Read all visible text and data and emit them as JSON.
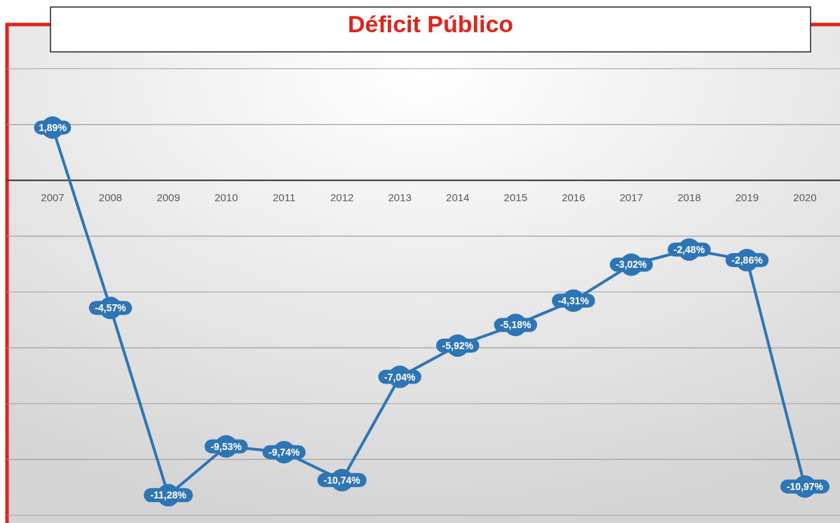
{
  "chart_data": {
    "type": "line",
    "title": "Déficit Público",
    "categories": [
      "2007",
      "2008",
      "2009",
      "2010",
      "2011",
      "2012",
      "2013",
      "2014",
      "2015",
      "2016",
      "2017",
      "2018",
      "2019",
      "2020"
    ],
    "series": [
      {
        "color": "#2e75b6",
        "values": [
          1.89,
          -4.57,
          -11.28,
          -9.53,
          -9.74,
          -10.74,
          -7.04,
          -5.92,
          -5.18,
          -4.31,
          -3.02,
          -2.48,
          -2.86,
          -10.97
        ],
        "value_labels": [
          "1,89%",
          "-4,57%",
          "-11,28%",
          "-9,53%",
          "-9,74%",
          "-10,74%",
          "-7,04%",
          "-5,92%",
          "-5,18%",
          "-4,31%",
          "-3,02%",
          "-2,48%",
          "-2,86%",
          "-10,97%"
        ]
      }
    ],
    "ylim": [
      -12,
      4
    ],
    "yticks": [
      {
        "value": -12,
        "label": null
      },
      {
        "value": -10,
        "label": null
      },
      {
        "value": -8,
        "label": null
      },
      {
        "value": -6,
        "label": null
      },
      {
        "value": -4,
        "label": null
      },
      {
        "value": -2,
        "label": null
      },
      {
        "value": 0,
        "label": null
      },
      {
        "value": 2,
        "label": null
      },
      {
        "value": 4,
        "label": null
      }
    ],
    "grid": "y",
    "tick_labels": "x",
    "marker": "circle",
    "line_style": "solid"
  }
}
